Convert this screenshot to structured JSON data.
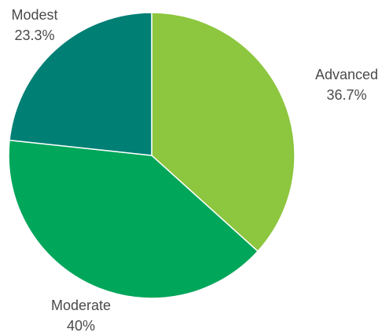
{
  "chart_data": {
    "type": "pie",
    "title": "",
    "start_angle_deg": 0,
    "direction": "clockwise",
    "legend": "none",
    "slices": [
      {
        "name": "Advanced",
        "value": 36.7,
        "value_label": "36.7%",
        "color": "#8dc63f"
      },
      {
        "name": "Moderate",
        "value": 40,
        "value_label": "40%",
        "color": "#00a65a"
      },
      {
        "name": "Modest",
        "value": 23.3,
        "value_label": "23.3%",
        "color": "#007f74"
      }
    ]
  }
}
